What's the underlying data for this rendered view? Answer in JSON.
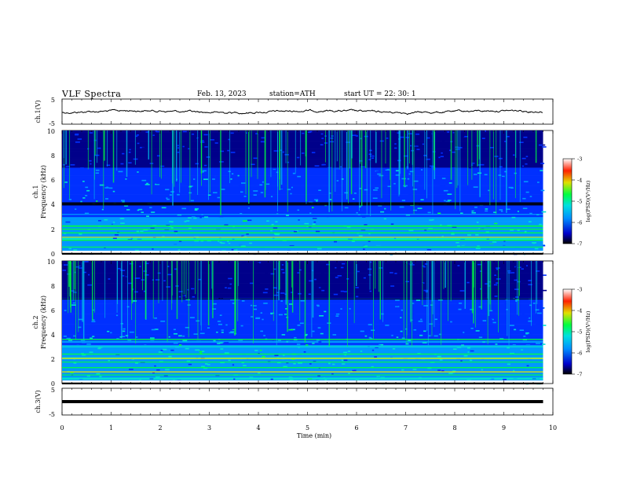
{
  "header": {
    "title": "VLF  Spectra",
    "date": "Feb. 13, 2023",
    "station": "station=ATH",
    "start": "start  UT  =   22: 30: 1"
  },
  "chart_data": [
    {
      "type": "line",
      "name": "ch1-waveform",
      "ylabel": "ch.1(V)",
      "ylim": [
        -5,
        5
      ],
      "yticks": [
        "5",
        "-5"
      ],
      "xlim": [
        0,
        10
      ]
    },
    {
      "type": "heatmap",
      "name": "ch1-spectrogram",
      "ylabel": "Frequency (kHz)",
      "channel_label": "ch.1",
      "ylim": [
        0,
        10
      ],
      "yticks": [
        "0",
        "2",
        "4",
        "6",
        "8",
        "10"
      ],
      "xlim": [
        0,
        10
      ],
      "data_end_min": 9.8,
      "colorbar": {
        "label": "log(PSD)(V²/Hz)",
        "range": [
          -7,
          -3
        ],
        "ticks": [
          "-3",
          "-4",
          "-5",
          "-6",
          "-7"
        ]
      }
    },
    {
      "type": "heatmap",
      "name": "ch2-spectrogram",
      "ylabel": "Frequency (kHz)",
      "channel_label": "ch.2",
      "ylim": [
        0,
        10
      ],
      "yticks": [
        "0",
        "2",
        "4",
        "6",
        "8",
        "10"
      ],
      "xlim": [
        0,
        10
      ],
      "data_end_min": 9.8,
      "colorbar": {
        "label": "log(PSD)(V²/Hz)",
        "range": [
          -7,
          -3
        ],
        "ticks": [
          "-3",
          "-4",
          "-5",
          "-6",
          "-7"
        ]
      }
    },
    {
      "type": "line",
      "name": "ch3-waveform",
      "ylabel": "ch.3(V)",
      "ylim": [
        -5,
        5
      ],
      "yticks": [
        "5",
        "-5"
      ],
      "xlim": [
        0,
        10
      ]
    }
  ],
  "xaxis": {
    "label": "Time  (min)",
    "range": [
      0,
      10
    ],
    "ticks": [
      "0",
      "1",
      "2",
      "3",
      "4",
      "5",
      "6",
      "7",
      "8",
      "9",
      "10"
    ]
  },
  "colors": {
    "spectrum_low": "#000000",
    "spectrum_mid": "#0044ff",
    "spectrum_high": "#ff0000",
    "trace": "#000000"
  }
}
